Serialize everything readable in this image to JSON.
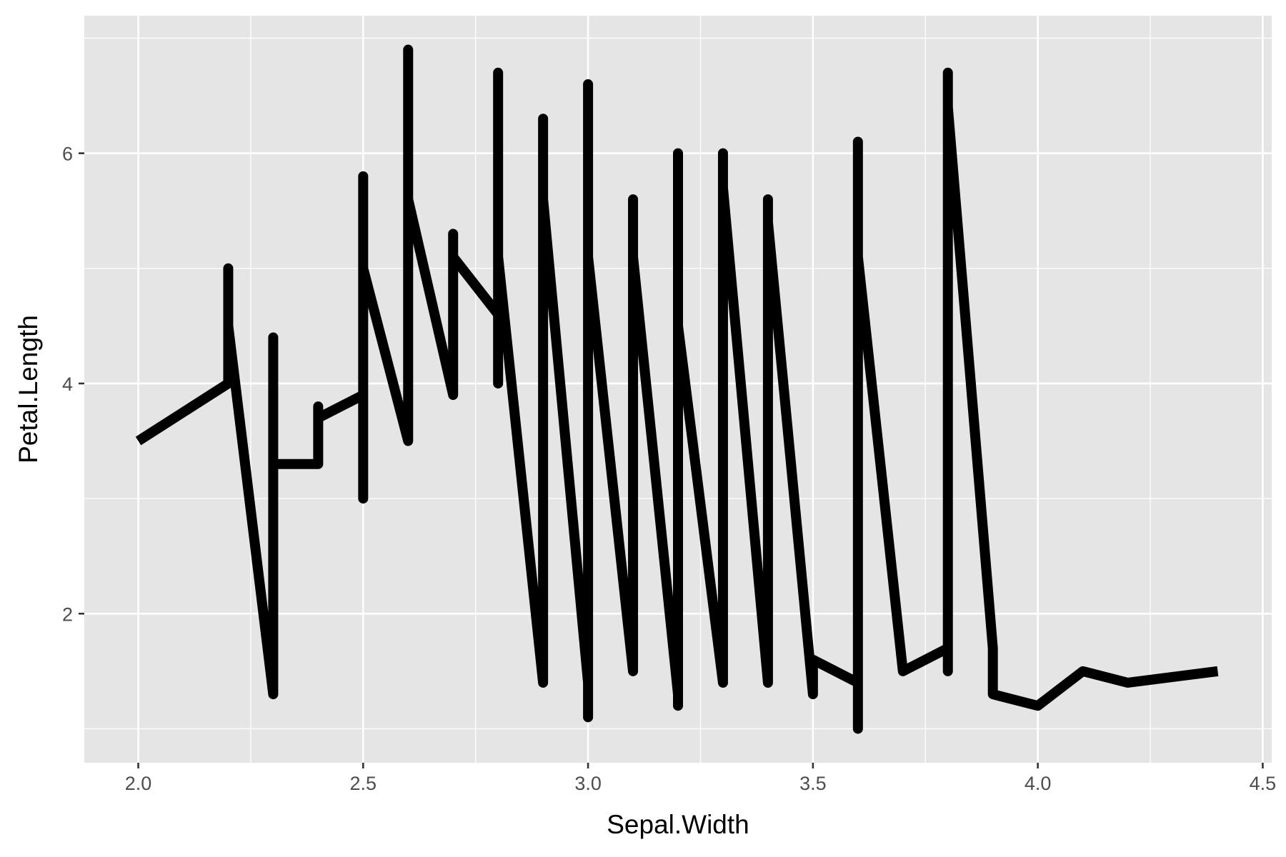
{
  "chart_data": {
    "type": "line",
    "title": "",
    "xlabel": "Sepal.Width",
    "ylabel": "Petal.Length",
    "xlim": [
      1.88,
      4.52
    ],
    "ylim": [
      0.705,
      7.195
    ],
    "x_ticks": [
      2.0,
      2.5,
      3.0,
      3.5,
      4.0,
      4.5
    ],
    "x_tick_labels": [
      "2.0",
      "2.5",
      "3.0",
      "3.5",
      "4.0",
      "4.5"
    ],
    "x_minor_ticks": [
      2.25,
      2.75,
      3.25,
      3.75,
      4.25
    ],
    "y_ticks": [
      2,
      4,
      6
    ],
    "y_tick_labels": [
      "2",
      "4",
      "6"
    ],
    "y_minor_ticks": [
      1,
      3,
      5,
      7
    ],
    "grid": true,
    "background": "#e5e5e5",
    "grid_color": "#ffffff",
    "line_color": "#000000",
    "series": [
      {
        "points": [
          [
            2.0,
            3.5
          ],
          [
            2.2,
            4.0
          ],
          [
            2.2,
            5.0
          ],
          [
            2.2,
            4.5
          ],
          [
            2.3,
            1.3
          ],
          [
            2.3,
            4.4
          ],
          [
            2.3,
            3.3
          ],
          [
            2.4,
            3.3
          ],
          [
            2.4,
            3.8
          ],
          [
            2.4,
            3.7
          ],
          [
            2.5,
            3.9
          ],
          [
            2.5,
            5.8
          ],
          [
            2.5,
            3.0
          ],
          [
            2.5,
            5.0
          ],
          [
            2.6,
            3.5
          ],
          [
            2.6,
            6.9
          ],
          [
            2.6,
            5.6
          ],
          [
            2.7,
            3.9
          ],
          [
            2.7,
            5.3
          ],
          [
            2.7,
            5.1
          ],
          [
            2.8,
            4.6
          ],
          [
            2.8,
            6.7
          ],
          [
            2.8,
            4.0
          ],
          [
            2.8,
            5.1
          ],
          [
            2.9,
            1.4
          ],
          [
            2.9,
            6.3
          ],
          [
            2.9,
            5.6
          ],
          [
            3.0,
            1.4
          ],
          [
            3.0,
            6.6
          ],
          [
            3.0,
            1.1
          ],
          [
            3.0,
            5.1
          ],
          [
            3.1,
            1.5
          ],
          [
            3.1,
            5.6
          ],
          [
            3.1,
            5.1
          ],
          [
            3.2,
            1.3
          ],
          [
            3.2,
            6.0
          ],
          [
            3.2,
            1.2
          ],
          [
            3.2,
            4.5
          ],
          [
            3.3,
            1.4
          ],
          [
            3.3,
            6.0
          ],
          [
            3.3,
            1.7
          ],
          [
            3.3,
            5.7
          ],
          [
            3.4,
            1.4
          ],
          [
            3.4,
            5.6
          ],
          [
            3.4,
            5.4
          ],
          [
            3.5,
            1.3
          ],
          [
            3.5,
            1.6
          ],
          [
            3.6,
            1.4
          ],
          [
            3.6,
            6.1
          ],
          [
            3.6,
            1.0
          ],
          [
            3.6,
            5.1
          ],
          [
            3.7,
            1.5
          ],
          [
            3.8,
            1.7
          ],
          [
            3.8,
            6.7
          ],
          [
            3.8,
            1.5
          ],
          [
            3.8,
            6.4
          ],
          [
            3.9,
            1.7
          ],
          [
            3.9,
            1.3
          ],
          [
            4.0,
            1.2
          ],
          [
            4.1,
            1.5
          ],
          [
            4.2,
            1.4
          ],
          [
            4.4,
            1.5
          ]
        ]
      }
    ]
  }
}
